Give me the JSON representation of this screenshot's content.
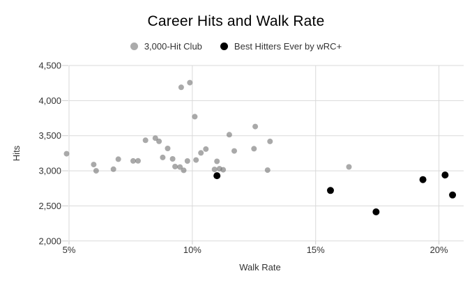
{
  "chart_data": {
    "type": "scatter",
    "title": "Career Hits and Walk Rate",
    "xlabel": "Walk Rate",
    "ylabel": "Hits",
    "x_tick_labels": [
      "5%",
      "10%",
      "15%",
      "20%"
    ],
    "x_tick_values": [
      5,
      10,
      15,
      20
    ],
    "y_tick_labels": [
      "4,500",
      "4,000",
      "3,500",
      "3,000",
      "2,500",
      "2,000"
    ],
    "y_tick_values": [
      4500,
      4000,
      3500,
      3000,
      2500,
      2000
    ],
    "x_range": [
      5,
      20
    ],
    "y_range": [
      2000,
      4500
    ],
    "x_unit": "percent",
    "grid": true,
    "legend_position": "top",
    "series": [
      {
        "name": "3,000-Hit Club",
        "color": "#757575",
        "legend_color": "#ababab",
        "marker_radius": 4,
        "opacity": 0.62,
        "points": [
          [
            4.9,
            3243
          ],
          [
            6.0,
            3089
          ],
          [
            6.1,
            3000
          ],
          [
            6.8,
            3023
          ],
          [
            7.0,
            3166
          ],
          [
            7.6,
            3141
          ],
          [
            7.8,
            3142
          ],
          [
            8.1,
            3435
          ],
          [
            8.5,
            3465
          ],
          [
            8.65,
            3420
          ],
          [
            8.8,
            3190
          ],
          [
            9.0,
            3319
          ],
          [
            9.2,
            3170
          ],
          [
            9.3,
            3060
          ],
          [
            9.5,
            3053
          ],
          [
            9.55,
            4189
          ],
          [
            9.65,
            3007
          ],
          [
            9.8,
            3140
          ],
          [
            9.9,
            4256
          ],
          [
            10.1,
            3771
          ],
          [
            10.15,
            3154
          ],
          [
            10.35,
            3255
          ],
          [
            10.55,
            3310
          ],
          [
            10.9,
            3020
          ],
          [
            11.0,
            3135
          ],
          [
            11.1,
            3030
          ],
          [
            11.25,
            3015
          ],
          [
            11.5,
            3514
          ],
          [
            11.7,
            3283
          ],
          [
            12.5,
            3315
          ],
          [
            12.55,
            3630
          ],
          [
            13.05,
            3010
          ],
          [
            13.15,
            3419
          ],
          [
            16.35,
            3055
          ]
        ]
      },
      {
        "name": "Best Hitters Ever by wRC+",
        "color": "#000000",
        "legend_color": "#000000",
        "marker_radius": 5,
        "opacity": 1,
        "points": [
          [
            11.0,
            2930
          ],
          [
            15.6,
            2720
          ],
          [
            17.45,
            2415
          ],
          [
            19.35,
            2875
          ],
          [
            20.25,
            2940
          ],
          [
            20.55,
            2655
          ]
        ]
      }
    ]
  }
}
